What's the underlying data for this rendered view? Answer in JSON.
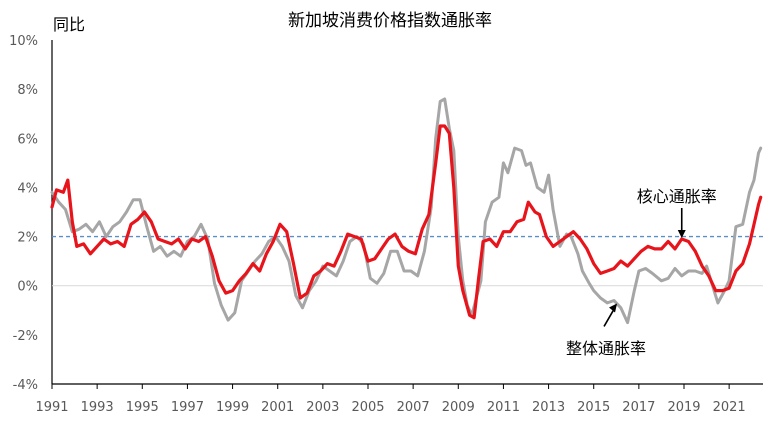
{
  "chart_data": {
    "type": "line",
    "title": "新加坡消费价格指数通胀率",
    "ylabel": "同比",
    "xlabel": "",
    "ylim": [
      -4,
      10
    ],
    "xlim": [
      1991,
      2022.5
    ],
    "y_ticks": [
      -4,
      -2,
      0,
      2,
      4,
      6,
      8,
      10
    ],
    "y_tick_labels": [
      "-4%",
      "-2%",
      "0%",
      "2%",
      "4%",
      "6%",
      "8%",
      "10%"
    ],
    "x_ticks": [
      1991,
      1993,
      1995,
      1997,
      1999,
      2001,
      2003,
      2005,
      2007,
      2009,
      2011,
      2013,
      2015,
      2017,
      2019,
      2021
    ],
    "x_tick_labels": [
      "1991",
      "1993",
      "1995",
      "1997",
      "1999",
      "2001",
      "2003",
      "2005",
      "2007",
      "2009",
      "2011",
      "2013",
      "2015",
      "2017",
      "2019",
      "2021"
    ],
    "reference_line": {
      "y": 2.0,
      "style": "dashed",
      "color": "#5b8fc7"
    },
    "annotations": [
      {
        "text": "核心通胀率",
        "series": "core"
      },
      {
        "text": "整体通胀率",
        "series": "headline"
      }
    ],
    "series": [
      {
        "id": "headline",
        "color": "#a6a6a6",
        "points": [
          [
            1991.0,
            3.8
          ],
          [
            1991.3,
            3.4
          ],
          [
            1991.6,
            3.1
          ],
          [
            1991.9,
            2.2
          ],
          [
            1992.2,
            2.3
          ],
          [
            1992.5,
            2.5
          ],
          [
            1992.8,
            2.2
          ],
          [
            1993.1,
            2.6
          ],
          [
            1993.4,
            2.0
          ],
          [
            1993.7,
            2.4
          ],
          [
            1994.0,
            2.6
          ],
          [
            1994.3,
            3.0
          ],
          [
            1994.6,
            3.5
          ],
          [
            1994.9,
            3.5
          ],
          [
            1995.2,
            2.4
          ],
          [
            1995.5,
            1.4
          ],
          [
            1995.8,
            1.6
          ],
          [
            1996.1,
            1.2
          ],
          [
            1996.4,
            1.4
          ],
          [
            1996.7,
            1.2
          ],
          [
            1997.0,
            1.8
          ],
          [
            1997.3,
            2.0
          ],
          [
            1997.6,
            2.5
          ],
          [
            1997.9,
            1.9
          ],
          [
            1998.2,
            0.1
          ],
          [
            1998.5,
            -0.8
          ],
          [
            1998.8,
            -1.4
          ],
          [
            1999.1,
            -1.1
          ],
          [
            1999.4,
            0.2
          ],
          [
            1999.7,
            0.6
          ],
          [
            2000.0,
            1.0
          ],
          [
            2000.3,
            1.3
          ],
          [
            2000.6,
            1.8
          ],
          [
            2000.9,
            2.0
          ],
          [
            2001.2,
            1.6
          ],
          [
            2001.5,
            1.0
          ],
          [
            2001.8,
            -0.4
          ],
          [
            2002.1,
            -0.9
          ],
          [
            2002.4,
            -0.2
          ],
          [
            2002.7,
            0.2
          ],
          [
            2003.0,
            0.8
          ],
          [
            2003.3,
            0.6
          ],
          [
            2003.6,
            0.4
          ],
          [
            2003.9,
            1.0
          ],
          [
            2004.2,
            1.8
          ],
          [
            2004.5,
            2.0
          ],
          [
            2004.8,
            1.7
          ],
          [
            2005.1,
            0.3
          ],
          [
            2005.4,
            0.1
          ],
          [
            2005.7,
            0.5
          ],
          [
            2006.0,
            1.4
          ],
          [
            2006.3,
            1.4
          ],
          [
            2006.6,
            0.6
          ],
          [
            2006.9,
            0.6
          ],
          [
            2007.2,
            0.4
          ],
          [
            2007.5,
            1.4
          ],
          [
            2007.8,
            3.2
          ],
          [
            2008.0,
            6.0
          ],
          [
            2008.2,
            7.5
          ],
          [
            2008.4,
            7.6
          ],
          [
            2008.6,
            6.4
          ],
          [
            2008.8,
            5.5
          ],
          [
            2009.0,
            2.0
          ],
          [
            2009.2,
            0.2
          ],
          [
            2009.4,
            -0.8
          ],
          [
            2009.6,
            -1.2
          ],
          [
            2009.8,
            -0.5
          ],
          [
            2010.0,
            0.2
          ],
          [
            2010.2,
            2.6
          ],
          [
            2010.5,
            3.4
          ],
          [
            2010.8,
            3.6
          ],
          [
            2011.0,
            5.0
          ],
          [
            2011.2,
            4.6
          ],
          [
            2011.5,
            5.6
          ],
          [
            2011.8,
            5.5
          ],
          [
            2012.0,
            4.9
          ],
          [
            2012.2,
            5.0
          ],
          [
            2012.5,
            4.0
          ],
          [
            2012.8,
            3.8
          ],
          [
            2013.0,
            4.5
          ],
          [
            2013.2,
            3.1
          ],
          [
            2013.5,
            1.6
          ],
          [
            2013.8,
            2.1
          ],
          [
            2014.0,
            2.0
          ],
          [
            2014.3,
            1.3
          ],
          [
            2014.5,
            0.6
          ],
          [
            2014.8,
            0.1
          ],
          [
            2015.0,
            -0.2
          ],
          [
            2015.3,
            -0.5
          ],
          [
            2015.6,
            -0.7
          ],
          [
            2015.9,
            -0.6
          ],
          [
            2016.2,
            -0.9
          ],
          [
            2016.5,
            -1.5
          ],
          [
            2016.8,
            -0.2
          ],
          [
            2017.0,
            0.6
          ],
          [
            2017.3,
            0.7
          ],
          [
            2017.6,
            0.5
          ],
          [
            2018.0,
            0.2
          ],
          [
            2018.3,
            0.3
          ],
          [
            2018.6,
            0.7
          ],
          [
            2018.9,
            0.4
          ],
          [
            2019.2,
            0.6
          ],
          [
            2019.5,
            0.6
          ],
          [
            2019.8,
            0.5
          ],
          [
            2020.0,
            0.8
          ],
          [
            2020.3,
            -0.1
          ],
          [
            2020.5,
            -0.7
          ],
          [
            2020.8,
            -0.2
          ],
          [
            2021.0,
            0.2
          ],
          [
            2021.3,
            2.4
          ],
          [
            2021.6,
            2.5
          ],
          [
            2021.9,
            3.8
          ],
          [
            2022.1,
            4.3
          ],
          [
            2022.3,
            5.4
          ],
          [
            2022.4,
            5.6
          ]
        ]
      },
      {
        "id": "core",
        "color": "#e8141b",
        "points": [
          [
            1991.0,
            3.2
          ],
          [
            1991.2,
            3.9
          ],
          [
            1991.5,
            3.8
          ],
          [
            1991.7,
            4.3
          ],
          [
            1991.9,
            2.6
          ],
          [
            1992.1,
            1.6
          ],
          [
            1992.4,
            1.7
          ],
          [
            1992.7,
            1.3
          ],
          [
            1993.0,
            1.6
          ],
          [
            1993.3,
            1.9
          ],
          [
            1993.6,
            1.7
          ],
          [
            1993.9,
            1.8
          ],
          [
            1994.2,
            1.6
          ],
          [
            1994.5,
            2.5
          ],
          [
            1994.8,
            2.7
          ],
          [
            1995.1,
            3.0
          ],
          [
            1995.4,
            2.6
          ],
          [
            1995.7,
            1.9
          ],
          [
            1996.0,
            1.8
          ],
          [
            1996.3,
            1.7
          ],
          [
            1996.6,
            1.9
          ],
          [
            1996.9,
            1.5
          ],
          [
            1997.2,
            1.9
          ],
          [
            1997.5,
            1.8
          ],
          [
            1997.8,
            2.0
          ],
          [
            1998.1,
            1.2
          ],
          [
            1998.4,
            0.2
          ],
          [
            1998.7,
            -0.3
          ],
          [
            1999.0,
            -0.2
          ],
          [
            1999.3,
            0.2
          ],
          [
            1999.6,
            0.5
          ],
          [
            1999.9,
            0.9
          ],
          [
            2000.2,
            0.6
          ],
          [
            2000.5,
            1.3
          ],
          [
            2000.8,
            1.8
          ],
          [
            2001.1,
            2.5
          ],
          [
            2001.4,
            2.2
          ],
          [
            2001.7,
            0.9
          ],
          [
            2002.0,
            -0.5
          ],
          [
            2002.3,
            -0.3
          ],
          [
            2002.6,
            0.4
          ],
          [
            2002.9,
            0.6
          ],
          [
            2003.2,
            0.9
          ],
          [
            2003.5,
            0.8
          ],
          [
            2003.8,
            1.4
          ],
          [
            2004.1,
            2.1
          ],
          [
            2004.4,
            2.0
          ],
          [
            2004.7,
            1.9
          ],
          [
            2005.0,
            1.0
          ],
          [
            2005.3,
            1.1
          ],
          [
            2005.6,
            1.5
          ],
          [
            2005.9,
            1.9
          ],
          [
            2006.2,
            2.1
          ],
          [
            2006.5,
            1.6
          ],
          [
            2006.8,
            1.4
          ],
          [
            2007.1,
            1.3
          ],
          [
            2007.4,
            2.3
          ],
          [
            2007.7,
            2.9
          ],
          [
            2008.0,
            5.0
          ],
          [
            2008.2,
            6.5
          ],
          [
            2008.4,
            6.5
          ],
          [
            2008.6,
            6.2
          ],
          [
            2008.8,
            4.0
          ],
          [
            2009.0,
            0.8
          ],
          [
            2009.2,
            -0.2
          ],
          [
            2009.5,
            -1.2
          ],
          [
            2009.7,
            -1.3
          ],
          [
            2009.9,
            0.3
          ],
          [
            2010.1,
            1.8
          ],
          [
            2010.4,
            1.9
          ],
          [
            2010.7,
            1.6
          ],
          [
            2011.0,
            2.2
          ],
          [
            2011.3,
            2.2
          ],
          [
            2011.6,
            2.6
          ],
          [
            2011.9,
            2.7
          ],
          [
            2012.1,
            3.4
          ],
          [
            2012.4,
            3.0
          ],
          [
            2012.6,
            2.9
          ],
          [
            2012.9,
            2.0
          ],
          [
            2013.2,
            1.6
          ],
          [
            2013.5,
            1.8
          ],
          [
            2013.8,
            2.0
          ],
          [
            2014.1,
            2.2
          ],
          [
            2014.4,
            1.9
          ],
          [
            2014.7,
            1.5
          ],
          [
            2015.0,
            0.9
          ],
          [
            2015.3,
            0.5
          ],
          [
            2015.6,
            0.6
          ],
          [
            2015.9,
            0.7
          ],
          [
            2016.2,
            1.0
          ],
          [
            2016.5,
            0.8
          ],
          [
            2016.8,
            1.1
          ],
          [
            2017.1,
            1.4
          ],
          [
            2017.4,
            1.6
          ],
          [
            2017.7,
            1.5
          ],
          [
            2018.0,
            1.5
          ],
          [
            2018.3,
            1.8
          ],
          [
            2018.6,
            1.5
          ],
          [
            2018.9,
            1.9
          ],
          [
            2019.2,
            1.8
          ],
          [
            2019.5,
            1.4
          ],
          [
            2019.8,
            0.8
          ],
          [
            2020.1,
            0.4
          ],
          [
            2020.4,
            -0.2
          ],
          [
            2020.7,
            -0.2
          ],
          [
            2021.0,
            -0.1
          ],
          [
            2021.3,
            0.6
          ],
          [
            2021.6,
            0.9
          ],
          [
            2021.9,
            1.7
          ],
          [
            2022.1,
            2.5
          ],
          [
            2022.3,
            3.3
          ],
          [
            2022.4,
            3.6
          ]
        ]
      }
    ]
  }
}
